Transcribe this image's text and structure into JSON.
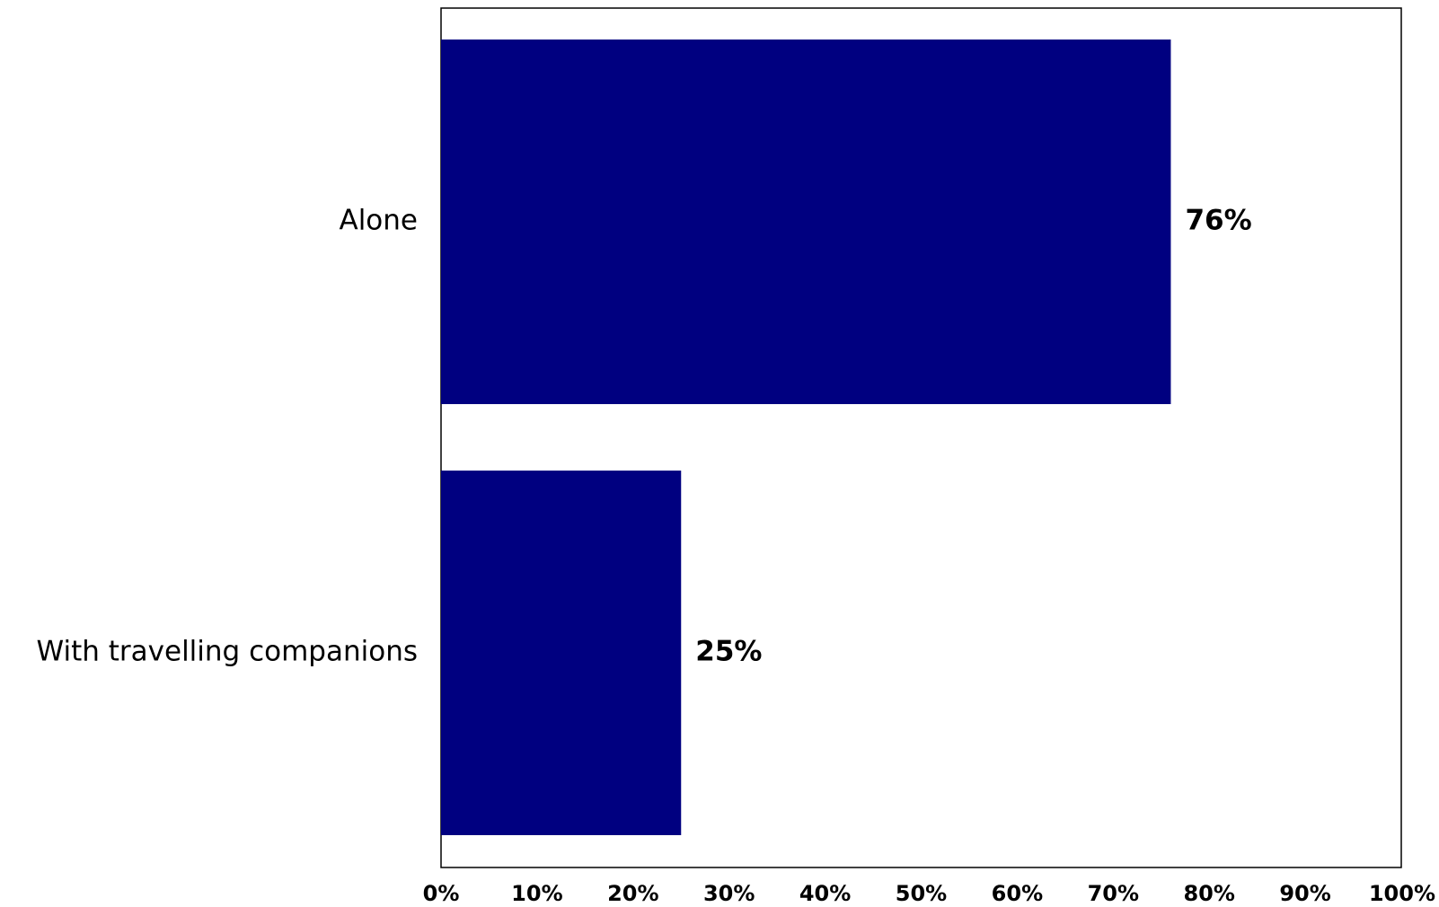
{
  "chart_data": {
    "type": "bar",
    "orientation": "horizontal",
    "categories": [
      "Alone",
      "With travelling companions"
    ],
    "values": [
      76,
      25
    ],
    "data_labels": [
      "76%",
      "25%"
    ],
    "title": "",
    "xlabel": "",
    "ylabel": "",
    "xlim": [
      0,
      100
    ],
    "x_ticks": [
      0,
      10,
      20,
      30,
      40,
      50,
      60,
      70,
      80,
      90,
      100
    ],
    "x_tick_labels": [
      "0%",
      "10%",
      "20%",
      "30%",
      "40%",
      "50%",
      "60%",
      "70%",
      "80%",
      "90%",
      "100%"
    ],
    "grid": false,
    "legend": "none",
    "bar_color": "#000080"
  }
}
